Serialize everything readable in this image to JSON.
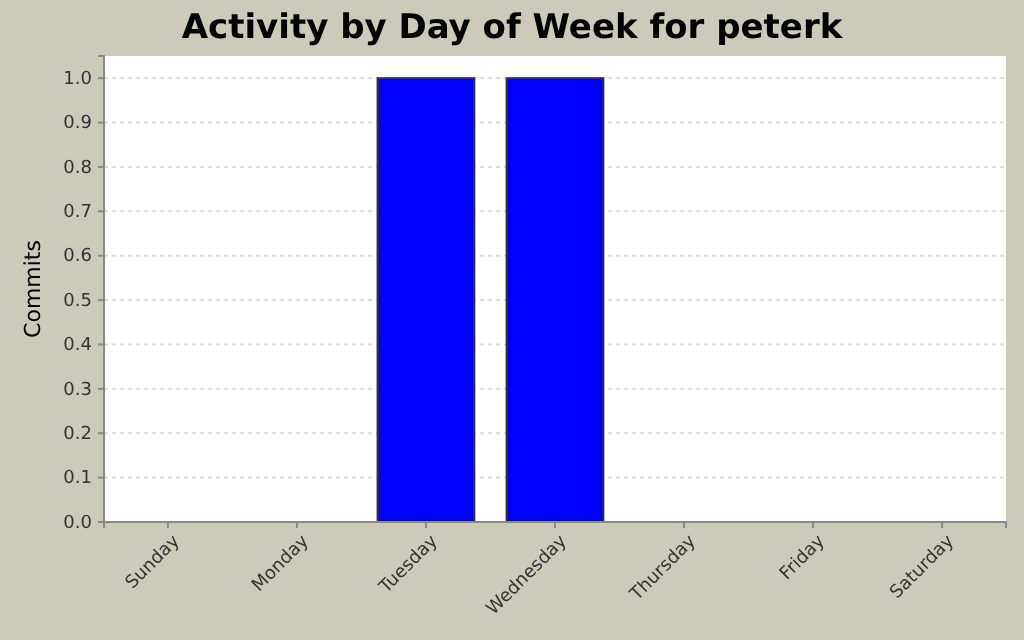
{
  "chart_data": {
    "type": "bar",
    "title": "Activity by Day of Week for peterk",
    "ylabel": "Commits",
    "categories": [
      "Sunday",
      "Monday",
      "Tuesday",
      "Wednesday",
      "Thursday",
      "Friday",
      "Saturday"
    ],
    "values": [
      0,
      0,
      1,
      1,
      0,
      0,
      0
    ],
    "color": "#0000ff",
    "ylim": [
      0,
      1.05
    ],
    "yticks": [
      {
        "value": 0,
        "label": "0.0"
      },
      {
        "value": 0.1,
        "label": "0.1"
      },
      {
        "value": 0.2,
        "label": "0.2"
      },
      {
        "value": 0.3,
        "label": "0.3"
      },
      {
        "value": 0.4,
        "label": "0.4"
      },
      {
        "value": 0.5,
        "label": "0.5"
      },
      {
        "value": 0.6,
        "label": "0.6"
      },
      {
        "value": 0.7,
        "label": "0.7"
      },
      {
        "value": 0.8,
        "label": "0.8"
      },
      {
        "value": 0.9,
        "label": "0.9"
      },
      {
        "value": 1,
        "label": "1.0"
      }
    ],
    "grid": "y"
  }
}
